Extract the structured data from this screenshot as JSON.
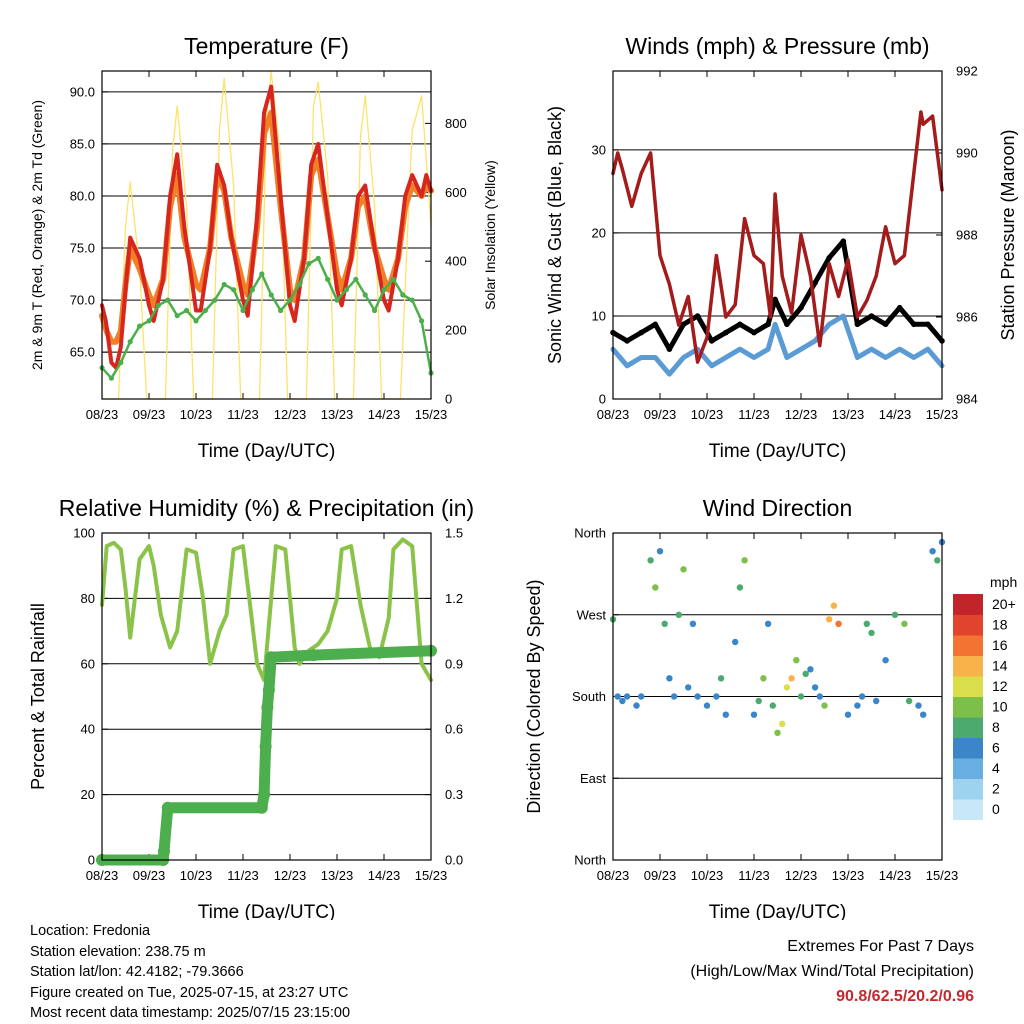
{
  "charts": {
    "temperature": {
      "title": "Temperature (F)",
      "xlabel": "Time (Day/UTC)",
      "ylabel_left": "2m & 9m T (Red, Orange) & 2m Td (Green)",
      "ylabel_right": "Solar Insolation (Yellow)",
      "left_ticks": [
        "65.0",
        "70.0",
        "75.0",
        "80.0",
        "85.0",
        "90.0"
      ],
      "right_ticks": [
        "0",
        "200",
        "400",
        "600",
        "800"
      ]
    },
    "winds": {
      "title": "Winds (mph) & Pressure (mb)",
      "xlabel": "Time (Day/UTC)",
      "ylabel_left": "Sonic Wind & Gust (Blue, Black)",
      "ylabel_right": "Station Pressure (Maroon)",
      "left_ticks": [
        "0",
        "10",
        "20",
        "30"
      ],
      "right_ticks": [
        "984",
        "986",
        "988",
        "990",
        "992"
      ]
    },
    "humidity": {
      "title": "Relative Humidity (%) & Precipitation (in)",
      "xlabel": "Time (Day/UTC)",
      "ylabel_left": "Percent & Total Rainfall",
      "left_ticks": [
        "0",
        "20",
        "40",
        "60",
        "80",
        "100"
      ],
      "right_ticks": [
        "0.0",
        "0.3",
        "0.6",
        "0.9",
        "1.2",
        "1.5"
      ]
    },
    "direction": {
      "title": "Wind Direction",
      "xlabel": "Time (Day/UTC)",
      "ylabel_left": "Direction (Colored By Speed)",
      "left_ticks": [
        "North",
        "East",
        "South",
        "West",
        "North"
      ],
      "legend_title": "mph",
      "legend_labels": [
        "0",
        "2",
        "4",
        "6",
        "8",
        "10",
        "12",
        "14",
        "16",
        "18",
        "20+"
      ]
    }
  },
  "x_ticks": [
    "08/23",
    "09/23",
    "10/23",
    "11/23",
    "12/23",
    "13/23",
    "14/23",
    "15/23"
  ],
  "colors": {
    "temp_2m": "#d7261e",
    "temp_9m": "#f07f26",
    "dewpoint": "#4cae4c",
    "solar": "#fde26a",
    "wind": "#5b9bd5",
    "gust": "#000000",
    "pressure": "#a31b1b",
    "rh": "#8bc34a",
    "rain": "#4cae4c",
    "speed_scale": [
      "#c6e8f7",
      "#9dd3ee",
      "#68aee0",
      "#3a86c8",
      "#4caa6e",
      "#7cc04a",
      "#d9de4a",
      "#f9b24a",
      "#f37432",
      "#e0442c",
      "#c1252a",
      "#93191b"
    ]
  },
  "footer": {
    "location": "Location: Fredonia",
    "elevation": "Station elevation: 238.75 m",
    "latlon": "Station lat/lon: 42.4182; -79.3666",
    "created": "Figure created on Tue, 2025-07-15, at 23:27 UTC",
    "recent": "Most recent data timestamp: 2025/07/15 23:15:00",
    "extremes_title": "Extremes For Past 7 Days",
    "extremes_sub": "(High/Low/Max Wind/Total Precipitation)",
    "extremes_values": "90.8/62.5/20.2/0.96"
  },
  "chart_data": [
    {
      "type": "line",
      "title": "Temperature (F)",
      "xlabel": "Time (Day/UTC)",
      "ylabel": "2m & 9m T (Red, Orange) & 2m Td (Green)",
      "y2label": "Solar Insolation (Yellow)",
      "xlim": [
        0,
        7
      ],
      "ylim": [
        60.5,
        92
      ],
      "y2lim": [
        0,
        952
      ],
      "x_tick_labels": [
        "08/23",
        "09/23",
        "10/23",
        "11/23",
        "12/23",
        "13/23",
        "14/23",
        "15/23"
      ],
      "series": [
        {
          "color": "#d7261e",
          "axis": "left",
          "x": [
            0,
            0.08,
            0.2,
            0.3,
            0.4,
            0.5,
            0.6,
            0.8,
            1.0,
            1.1,
            1.3,
            1.45,
            1.6,
            1.75,
            2.0,
            2.1,
            2.3,
            2.45,
            2.6,
            2.75,
            3.0,
            3.1,
            3.3,
            3.45,
            3.6,
            3.8,
            4.0,
            4.1,
            4.3,
            4.45,
            4.6,
            4.8,
            5.0,
            5.1,
            5.3,
            5.45,
            5.6,
            5.8,
            6.0,
            6.1,
            6.3,
            6.45,
            6.6,
            6.8,
            6.9,
            7.0
          ],
          "y": [
            69.5,
            68.0,
            64.0,
            63.5,
            65.5,
            71.0,
            76.0,
            74.0,
            69.5,
            68.0,
            72.0,
            80.0,
            84.0,
            77.0,
            69.0,
            69.0,
            75.0,
            83.0,
            81.0,
            76.0,
            70.0,
            68.5,
            78.0,
            88.0,
            90.5,
            80.0,
            69.5,
            68.0,
            74.0,
            83.0,
            85.0,
            78.0,
            71.0,
            69.5,
            74.0,
            80.0,
            81.0,
            75.0,
            70.0,
            69.0,
            74.0,
            80.0,
            82.0,
            80.0,
            82.0,
            80.5
          ]
        },
        {
          "color": "#f07f26",
          "axis": "left",
          "x": [
            0,
            0.1,
            0.2,
            0.3,
            0.4,
            0.5,
            0.6,
            0.8,
            1.0,
            1.1,
            1.3,
            1.45,
            1.6,
            1.75,
            2.0,
            2.1,
            2.3,
            2.45,
            2.6,
            2.75,
            3.0,
            3.1,
            3.3,
            3.45,
            3.6,
            3.8,
            4.0,
            4.1,
            4.3,
            4.45,
            4.6,
            4.8,
            5.0,
            5.1,
            5.3,
            5.45,
            5.6,
            5.8,
            6.0,
            6.1,
            6.3,
            6.45,
            6.6,
            6.8,
            6.9,
            7.0
          ],
          "y": [
            68.5,
            67.0,
            66.0,
            66.0,
            67.0,
            71.5,
            75.0,
            73.0,
            70.5,
            69.5,
            72.0,
            79.0,
            82.0,
            76.0,
            71.5,
            71.0,
            75.0,
            82.0,
            80.5,
            76.0,
            71.5,
            70.5,
            77.0,
            86.0,
            88.0,
            79.0,
            71.0,
            70.0,
            74.0,
            82.0,
            83.5,
            78.0,
            72.5,
            71.0,
            74.0,
            79.0,
            80.0,
            75.0,
            72.0,
            71.0,
            74.0,
            79.0,
            81.0,
            80.0,
            81.0,
            80.5
          ]
        },
        {
          "color": "#4cae4c",
          "axis": "left",
          "x": [
            0,
            0.2,
            0.4,
            0.6,
            0.8,
            1.0,
            1.2,
            1.4,
            1.6,
            1.8,
            2.0,
            2.2,
            2.4,
            2.6,
            2.8,
            3.0,
            3.2,
            3.4,
            3.6,
            3.8,
            4.0,
            4.2,
            4.4,
            4.6,
            4.8,
            5.0,
            5.2,
            5.4,
            5.6,
            5.8,
            6.0,
            6.2,
            6.4,
            6.6,
            6.8,
            7.0
          ],
          "y": [
            63.5,
            62.5,
            64.0,
            66.0,
            67.5,
            68.0,
            69.5,
            70.0,
            68.5,
            69.0,
            68.0,
            69.0,
            70.0,
            71.5,
            71.0,
            69.0,
            71.0,
            72.5,
            70.5,
            69.0,
            70.0,
            71.5,
            73.5,
            74.0,
            72.0,
            70.0,
            71.0,
            72.0,
            70.5,
            69.0,
            71.0,
            72.0,
            70.5,
            70.0,
            68.0,
            63.0
          ]
        },
        {
          "color": "#fde26a",
          "axis": "right",
          "x": [
            0,
            0.35,
            0.5,
            0.6,
            0.8,
            0.95,
            1.35,
            1.5,
            1.6,
            1.8,
            1.95,
            2.35,
            2.5,
            2.6,
            2.8,
            2.95,
            3.35,
            3.5,
            3.6,
            3.8,
            3.95,
            4.35,
            4.5,
            4.6,
            4.8,
            4.95,
            5.35,
            5.5,
            5.6,
            5.8,
            5.95,
            6.35,
            6.5,
            6.6,
            6.8,
            6.95,
            7.0
          ],
          "y": [
            0,
            0,
            500,
            630,
            380,
            0,
            0,
            720,
            850,
            560,
            0,
            0,
            780,
            930,
            620,
            0,
            0,
            820,
            950,
            700,
            0,
            0,
            850,
            920,
            650,
            0,
            0,
            760,
            880,
            560,
            0,
            0,
            480,
            780,
            880,
            600,
            500
          ]
        }
      ]
    },
    {
      "type": "line",
      "title": "Winds (mph) & Pressure (mb)",
      "xlabel": "Time (Day/UTC)",
      "ylabel": "Sonic Wind & Gust (Blue, Black)",
      "y2label": "Station Pressure (Maroon)",
      "xlim": [
        0,
        7
      ],
      "ylim": [
        0,
        39.5
      ],
      "y2lim": [
        984,
        992
      ],
      "x_tick_labels": [
        "08/23",
        "09/23",
        "10/23",
        "11/23",
        "12/23",
        "13/23",
        "14/23",
        "15/23"
      ],
      "series": [
        {
          "color": "#5b9bd5",
          "axis": "left",
          "x": [
            0,
            0.3,
            0.6,
            0.9,
            1.2,
            1.5,
            1.8,
            2.1,
            2.4,
            2.7,
            3.0,
            3.3,
            3.45,
            3.7,
            4.0,
            4.3,
            4.6,
            4.9,
            5.2,
            5.5,
            5.8,
            6.1,
            6.4,
            6.7,
            7.0
          ],
          "y": [
            6,
            4,
            5,
            5,
            3,
            5,
            6,
            4,
            5,
            6,
            5,
            6,
            9,
            5,
            6,
            7,
            9,
            10,
            5,
            6,
            5,
            6,
            5,
            6,
            4
          ]
        },
        {
          "color": "#000000",
          "axis": "left",
          "x": [
            0,
            0.3,
            0.6,
            0.9,
            1.2,
            1.5,
            1.8,
            2.1,
            2.4,
            2.7,
            3.0,
            3.3,
            3.45,
            3.7,
            4.0,
            4.3,
            4.6,
            4.9,
            5.2,
            5.5,
            5.8,
            6.1,
            6.4,
            6.7,
            7.0
          ],
          "y": [
            8,
            7,
            8,
            9,
            6,
            9,
            10,
            7,
            8,
            9,
            8,
            9,
            12,
            9,
            11,
            14,
            17,
            19,
            9,
            10,
            9,
            11,
            9,
            9,
            7
          ]
        },
        {
          "color": "#a31b1b",
          "axis": "right",
          "x": [
            0,
            0.1,
            0.2,
            0.4,
            0.6,
            0.8,
            1.0,
            1.2,
            1.4,
            1.6,
            1.8,
            2.0,
            2.2,
            2.4,
            2.6,
            2.8,
            3.0,
            3.2,
            3.35,
            3.45,
            3.6,
            3.8,
            4.0,
            4.2,
            4.4,
            4.6,
            4.8,
            5.0,
            5.2,
            5.4,
            5.6,
            5.8,
            6.0,
            6.2,
            6.4,
            6.55,
            6.6,
            6.8,
            6.9,
            7.0
          ],
          "y": [
            989.5,
            990.0,
            989.6,
            988.7,
            989.5,
            990.0,
            987.5,
            986.8,
            985.8,
            986.5,
            984.9,
            985.5,
            987.5,
            986.0,
            986.3,
            988.4,
            987.5,
            987.3,
            986.0,
            989.0,
            987.0,
            986.1,
            988.0,
            987.0,
            985.3,
            987.3,
            986.5,
            987.4,
            986.0,
            986.4,
            987.0,
            988.2,
            987.3,
            987.5,
            989.5,
            991.0,
            990.7,
            990.9,
            990.0,
            989.1
          ]
        }
      ]
    },
    {
      "type": "line",
      "title": "Relative Humidity (%) & Precipitation (in)",
      "xlabel": "Time (Day/UTC)",
      "ylabel": "Percent & Total Rainfall",
      "xlim": [
        0,
        7
      ],
      "ylim": [
        0,
        100
      ],
      "y2lim": [
        0,
        1.5
      ],
      "x_tick_labels": [
        "08/23",
        "09/23",
        "10/23",
        "11/23",
        "12/23",
        "13/23",
        "14/23",
        "15/23"
      ],
      "series": [
        {
          "color": "#8bc34a",
          "axis": "left",
          "x": [
            0,
            0.1,
            0.25,
            0.4,
            0.5,
            0.6,
            0.8,
            1.0,
            1.1,
            1.25,
            1.45,
            1.6,
            1.8,
            2.0,
            2.15,
            2.3,
            2.5,
            2.65,
            2.8,
            3.0,
            3.1,
            3.3,
            3.45,
            3.6,
            3.7,
            3.9,
            4.1,
            4.2,
            4.4,
            4.6,
            4.8,
            5.0,
            5.1,
            5.3,
            5.5,
            5.7,
            5.9,
            6.1,
            6.2,
            6.4,
            6.6,
            6.8,
            7.0
          ],
          "y": [
            78,
            96,
            97,
            95,
            83,
            68,
            92,
            96,
            90,
            75,
            65,
            70,
            95,
            94,
            80,
            60,
            70,
            75,
            95,
            96,
            84,
            60,
            55,
            80,
            96,
            95,
            65,
            60,
            64,
            66,
            70,
            80,
            95,
            96,
            78,
            65,
            62,
            74,
            95,
            98,
            96,
            60,
            55
          ]
        },
        {
          "color": "#4cae4c",
          "axis": "right",
          "x": [
            0,
            1.3,
            1.32,
            1.4,
            3.4,
            3.45,
            3.48,
            3.52,
            3.55,
            3.6,
            4.5,
            7.0
          ],
          "y": [
            0.0,
            0.0,
            0.04,
            0.24,
            0.24,
            0.3,
            0.52,
            0.7,
            0.78,
            0.93,
            0.94,
            0.96
          ]
        }
      ]
    },
    {
      "type": "scatter",
      "title": "Wind Direction",
      "xlabel": "Time (Day/UTC)",
      "ylabel": "Direction (Colored By Speed)",
      "xlim": [
        0,
        7
      ],
      "ylim": [
        0,
        360
      ],
      "y_tick_labels": [
        "North",
        "East",
        "South",
        "West",
        "North"
      ],
      "x_tick_labels": [
        "08/23",
        "09/23",
        "10/23",
        "11/23",
        "12/23",
        "13/23",
        "14/23",
        "15/23"
      ],
      "legend_title": "mph",
      "series": [
        {
          "name": "direction_points",
          "x": [
            0.0,
            0.1,
            0.2,
            0.3,
            0.5,
            0.6,
            0.8,
            0.9,
            1.0,
            1.1,
            1.2,
            1.3,
            1.4,
            1.5,
            1.6,
            1.7,
            1.8,
            2.0,
            2.2,
            2.3,
            2.4,
            2.6,
            2.7,
            2.8,
            3.0,
            3.1,
            3.2,
            3.3,
            3.4,
            3.5,
            3.6,
            3.7,
            3.8,
            3.9,
            4.0,
            4.1,
            4.2,
            4.3,
            4.4,
            4.5,
            4.6,
            4.7,
            4.8,
            5.0,
            5.2,
            5.3,
            5.4,
            5.5,
            5.6,
            5.8,
            6.0,
            6.2,
            6.3,
            6.5,
            6.6,
            6.8,
            6.9,
            7.0
          ],
          "y": [
            265,
            180,
            175,
            180,
            170,
            180,
            330,
            300,
            340,
            260,
            200,
            180,
            270,
            320,
            190,
            260,
            180,
            170,
            180,
            200,
            160,
            240,
            300,
            330,
            160,
            175,
            200,
            260,
            170,
            140,
            150,
            190,
            200,
            220,
            180,
            205,
            210,
            190,
            180,
            170,
            265,
            280,
            260,
            160,
            170,
            180,
            260,
            250,
            175,
            220,
            270,
            260,
            175,
            170,
            160,
            340,
            330,
            350
          ],
          "speed": [
            6,
            4,
            5,
            5,
            4,
            5,
            6,
            8,
            5,
            6,
            4,
            5,
            6,
            8,
            5,
            4,
            5,
            4,
            5,
            6,
            4,
            5,
            6,
            8,
            5,
            6,
            8,
            5,
            6,
            9,
            11,
            10,
            12,
            8,
            7,
            6,
            5,
            4,
            5,
            9,
            13,
            12,
            14,
            4,
            5,
            4,
            6,
            7,
            5,
            4,
            6,
            8,
            7,
            4,
            5,
            5,
            6,
            4
          ]
        }
      ]
    }
  ]
}
